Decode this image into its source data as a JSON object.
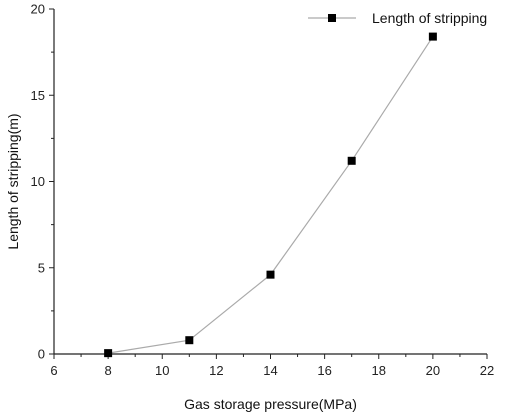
{
  "chart_data": {
    "type": "line",
    "xlabel": "Gas storage pressure(MPa)",
    "ylabel": "Length of stripping(m)",
    "xlim": [
      6,
      22
    ],
    "ylim": [
      0,
      20
    ],
    "xticks": [
      6,
      8,
      10,
      12,
      14,
      16,
      18,
      20,
      22
    ],
    "yticks": [
      0,
      5,
      10,
      15,
      20
    ],
    "grid": false,
    "legend_position": "top-right",
    "series": [
      {
        "name": "Length of stripping",
        "marker": "square",
        "line_color": "#aaaaaa",
        "marker_color": "#000000",
        "x": [
          8,
          11,
          14,
          17,
          20
        ],
        "y": [
          0.05,
          0.8,
          4.6,
          11.2,
          18.4
        ]
      }
    ]
  }
}
